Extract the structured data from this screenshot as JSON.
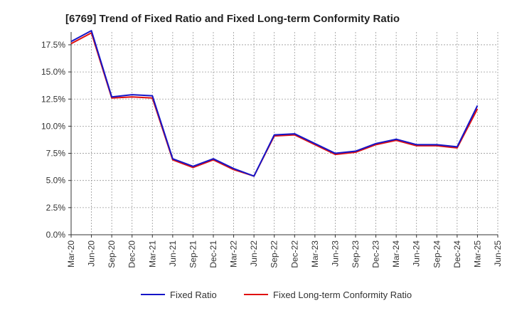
{
  "chart_data": {
    "type": "line",
    "title": "[6769]  Trend of Fixed Ratio and Fixed Long-term Conformity Ratio",
    "xlabel": "",
    "ylabel": "",
    "x": [
      "Mar-20",
      "Jun-20",
      "Sep-20",
      "Dec-20",
      "Mar-21",
      "Jun-21",
      "Sep-21",
      "Dec-21",
      "Mar-22",
      "Jun-22",
      "Sep-22",
      "Dec-22",
      "Mar-23",
      "Jun-23",
      "Sep-23",
      "Dec-23",
      "Mar-24",
      "Jun-24",
      "Sep-24",
      "Dec-24",
      "Mar-25",
      "Jun-25"
    ],
    "ylim": [
      0,
      17.5
    ],
    "yticks": [
      "0.0%",
      "2.5%",
      "5.0%",
      "7.5%",
      "10.0%",
      "12.5%",
      "15.0%",
      "17.5%"
    ],
    "grid": true,
    "legend_position": "bottom",
    "series": [
      {
        "name": "Fixed Ratio",
        "color": "#1515c8",
        "values": [
          17.8,
          18.8,
          12.7,
          12.9,
          12.8,
          7.0,
          6.3,
          7.0,
          6.1,
          5.4,
          9.2,
          9.3,
          8.4,
          7.5,
          7.7,
          8.4,
          8.8,
          8.3,
          8.3,
          8.1,
          11.9,
          null
        ]
      },
      {
        "name": "Fixed Long-term Conformity Ratio",
        "color": "#e01010",
        "values": [
          17.6,
          18.6,
          12.6,
          12.7,
          12.6,
          6.9,
          6.2,
          6.9,
          6.0,
          5.4,
          9.1,
          9.2,
          8.3,
          7.4,
          7.6,
          8.3,
          8.7,
          8.2,
          8.2,
          8.0,
          11.6,
          null
        ]
      }
    ]
  }
}
